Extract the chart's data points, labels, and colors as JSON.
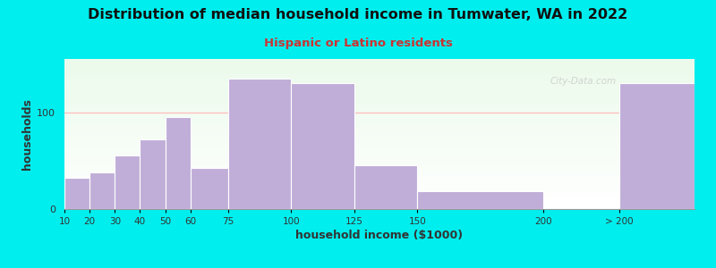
{
  "title": "Distribution of median household income in Tumwater, WA in 2022",
  "subtitle": "Hispanic or Latino residents",
  "xlabel": "household income ($1000)",
  "ylabel": "households",
  "bg_outer": "#00EEEE",
  "bar_color": "#c0aed8",
  "bar_edge_color": "#ffffff",
  "plot_bg_color_top": "#e8f5e9",
  "plot_bg_color_bottom": "#ffffff",
  "watermark": "City-Data.com",
  "subtitle_color": "#cc3333",
  "title_color": "#111111",
  "bin_edges": [
    10,
    20,
    30,
    40,
    50,
    60,
    75,
    100,
    125,
    150,
    200,
    230,
    260
  ],
  "values": [
    32,
    38,
    55,
    72,
    95,
    42,
    135,
    130,
    45,
    18,
    0,
    130
  ],
  "ylim": [
    0,
    155
  ],
  "yticks": [
    0,
    100
  ],
  "hline_y": 100,
  "hline_color": "#ffbbbb"
}
